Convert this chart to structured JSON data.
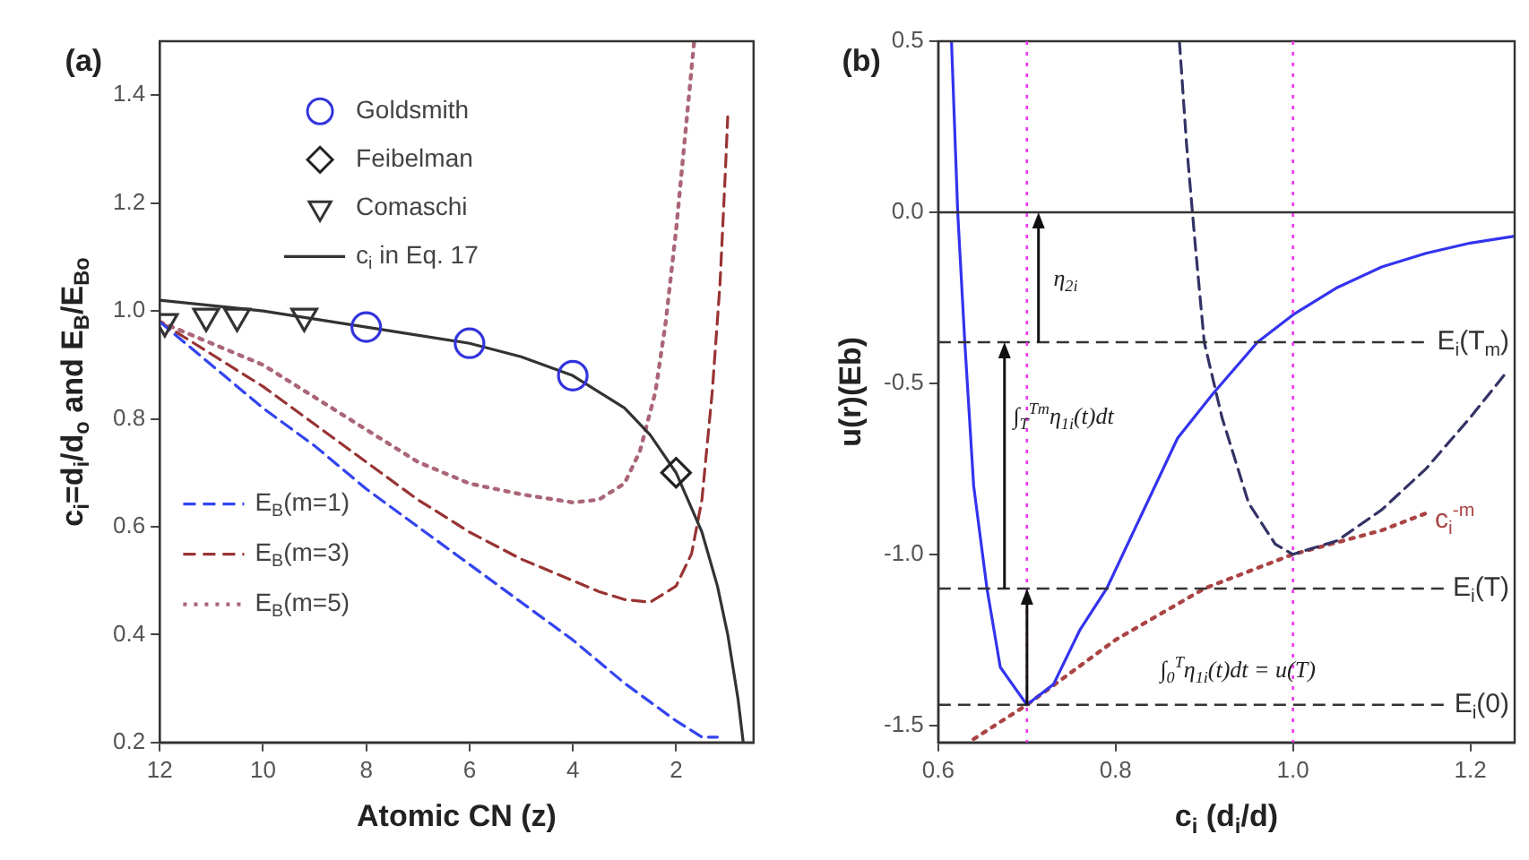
{
  "chart_data": [
    {
      "type": "line",
      "title": "(a)",
      "xlabel": "Atomic CN (z)",
      "ylabel": "c$_{i}$=d$_{i}$/d$_{o}$ and E$_{B}$/E$_{Bo}$",
      "xlim": [
        12,
        0.5
      ],
      "ylim": [
        0.2,
        1.5
      ],
      "xticks": [
        12,
        10,
        8,
        6,
        4,
        2
      ],
      "yticks": [
        0.2,
        0.4,
        0.6,
        0.8,
        {
          "value": 1,
          "label": "1.0"
        },
        1.2,
        1.4
      ],
      "grid": false,
      "legend": "top",
      "series": [
        {
          "name": "Goldsmith",
          "type": "scatter",
          "marker": "circle",
          "color": "#3333dd",
          "x": [
            8,
            6,
            4
          ],
          "values": [
            0.97,
            0.94,
            0.88
          ]
        },
        {
          "name": "Feibelman",
          "type": "scatter",
          "marker": "diamond",
          "color": "#222222",
          "x": [
            2
          ],
          "values": [
            0.7
          ]
        },
        {
          "name": "Comaschi",
          "type": "scatter",
          "marker": "triangle",
          "color": "#333333",
          "x": [
            11.9,
            11.1,
            10.5,
            9.2
          ],
          "values": [
            0.98,
            0.99,
            0.99,
            0.99
          ]
        },
        {
          "name": "c$_{i}$ in Eq. 17",
          "marker": "none",
          "line_style": "solid",
          "color": "#333333",
          "x": [
            12,
            10,
            8,
            6,
            5,
            4,
            3,
            2.5,
            2,
            1.5,
            1.2,
            1,
            0.8,
            0.7
          ],
          "values": [
            1.02,
            1.0,
            0.97,
            0.94,
            0.915,
            0.88,
            0.82,
            0.77,
            0.7,
            0.59,
            0.49,
            0.4,
            0.28,
            0.2
          ]
        },
        {
          "name": "E$_{B}$(m=1)",
          "marker": "none",
          "line_style": "dashed",
          "color": "#3344ee",
          "x": [
            12,
            11,
            10,
            9,
            8,
            7,
            6,
            5,
            4,
            3,
            2,
            1.5,
            1.2
          ],
          "values": [
            0.98,
            0.9,
            0.82,
            0.75,
            0.67,
            0.6,
            0.53,
            0.46,
            0.39,
            0.31,
            0.24,
            0.21,
            0.21
          ]
        },
        {
          "name": "E$_{B}$(m=3)",
          "marker": "none",
          "line_style": "dashed",
          "color": "#993333",
          "x": [
            12,
            11,
            10,
            9,
            8,
            7,
            6,
            5,
            4,
            3.5,
            3,
            2.5,
            2,
            1.7,
            1.5,
            1.3,
            1.15,
            1.05,
            1.0
          ],
          "values": [
            0.98,
            0.92,
            0.86,
            0.79,
            0.72,
            0.65,
            0.59,
            0.54,
            0.5,
            0.48,
            0.465,
            0.46,
            0.49,
            0.55,
            0.65,
            0.85,
            1.05,
            1.25,
            1.36
          ]
        },
        {
          "name": "E$_{B}$(m=5)",
          "marker": "none",
          "line_style": "dotted",
          "color": "#aa6677",
          "x": [
            12,
            11,
            10,
            9,
            8,
            7,
            6,
            5,
            4,
            3.5,
            3,
            2.7,
            2.4,
            2.2,
            2,
            1.8,
            1.65
          ],
          "values": [
            0.98,
            0.94,
            0.9,
            0.84,
            0.78,
            0.72,
            0.68,
            0.66,
            0.645,
            0.65,
            0.68,
            0.74,
            0.85,
            0.98,
            1.15,
            1.35,
            1.5
          ]
        }
      ]
    },
    {
      "type": "line",
      "title": "(b)",
      "xlabel": "c$_{i}$ (d$_{i}$/d)",
      "ylabel": "u(r)(Eb)",
      "xlim": [
        0.6,
        1.25
      ],
      "ylim": [
        -1.55,
        0.5
      ],
      "xticks": [
        0.6,
        0.8,
        {
          "value": 1,
          "label": "1.0"
        },
        1.2
      ],
      "yticks": [
        -1.5,
        {
          "value": -1,
          "label": "-1.0"
        },
        -0.5,
        {
          "value": 0,
          "label": "0.0"
        },
        0.5
      ],
      "grid": false,
      "series": [
        {
          "line_style": "solid",
          "color": "#3333ee",
          "x": [
            0.615,
            0.622,
            0.63,
            0.64,
            0.655,
            0.67,
            0.7,
            0.73,
            0.76,
            0.79,
            0.83,
            0.87,
            0.91,
            0.96,
            1.0,
            1.05,
            1.1,
            1.15,
            1.2,
            1.25
          ],
          "values": [
            0.5,
            0,
            -0.38,
            -0.8,
            -1.1,
            -1.33,
            -1.44,
            -1.38,
            -1.22,
            -1.1,
            -0.88,
            -0.66,
            -0.53,
            -0.38,
            -0.3,
            -0.22,
            -0.16,
            -0.12,
            -0.09,
            -0.07
          ]
        },
        {
          "line_style": "dashed",
          "color": "#333366",
          "x": [
            0.872,
            0.88,
            0.89,
            0.9,
            0.92,
            0.95,
            0.98,
            1.0,
            1.05,
            1.1,
            1.15,
            1.2,
            1.24
          ],
          "values": [
            0.5,
            0.2,
            -0.1,
            -0.38,
            -0.6,
            -0.85,
            -0.97,
            -1.0,
            -0.96,
            -0.87,
            -0.75,
            -0.6,
            -0.47
          ]
        },
        {
          "name": "c$_{i}$$^{-m}$",
          "line_style": "dotted",
          "color": "#aa4444",
          "x": [
            0.64,
            0.7,
            0.8,
            0.9,
            1.0,
            1.1,
            1.15
          ],
          "values": [
            -1.54,
            -1.44,
            -1.25,
            -1.1,
            -1.0,
            -0.93,
            -0.88
          ]
        }
      ],
      "ref_lines": [
        {
          "axis": "y",
          "value": 0,
          "color": "#333333"
        },
        {
          "axis": "y",
          "value": -0.38,
          "label": "E$_{i}$(T$_{m}$)",
          "color": "#333333",
          "line_style": "dashed"
        },
        {
          "axis": "y",
          "value": -1.1,
          "label": "E$_{i}$(T)",
          "color": "#333333",
          "line_style": "dashed"
        },
        {
          "axis": "y",
          "value": -1.44,
          "label": "E$_{i}$(0)",
          "color": "#333333",
          "line_style": "dashed"
        },
        {
          "axis": "x",
          "value": 0.7,
          "color": "#ee33ee",
          "line_style": "dotted"
        },
        {
          "axis": "x",
          "value": 1.0,
          "color": "#ee33ee",
          "line_style": "dotted"
        }
      ],
      "annotations": [
        "η$_{2i}$",
        "∫$_{T}$$^{Tm}$η$_{1i}$(t)dt",
        "∫$_{0}$$^{T}$η$_{1i}$(t)dt = u(T)"
      ]
    }
  ]
}
